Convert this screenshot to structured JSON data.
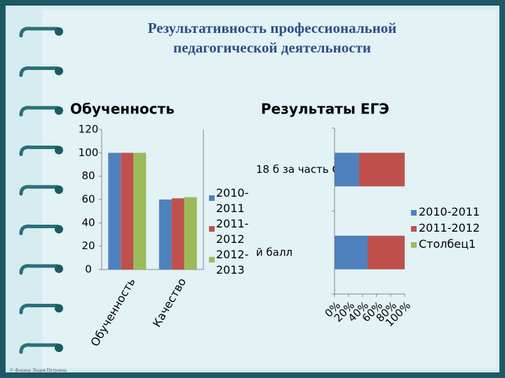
{
  "slide": {
    "title": "Результативность профессиональной педагогической деятельности",
    "footer": "© Фокина Лидия Петровна"
  },
  "chart_data": [
    {
      "type": "bar",
      "title": "Обученность",
      "categories": [
        "Обученность",
        "Качество"
      ],
      "series": [
        {
          "name": "2010-2011",
          "color": "#4f81bd",
          "values": [
            100,
            60
          ]
        },
        {
          "name": "2011-2012",
          "color": "#c0504d",
          "values": [
            100,
            61
          ]
        },
        {
          "name": "2012-2013",
          "color": "#9bbb59",
          "values": [
            100,
            62
          ]
        }
      ],
      "ylim": [
        0,
        120
      ],
      "yticks": [
        0,
        20,
        40,
        60,
        80,
        100,
        120
      ],
      "grid": false
    },
    {
      "type": "stacked-barh",
      "title": "Результаты ЕГЭ",
      "categories": [
        "й балл",
        "18 б за часть С"
      ],
      "series": [
        {
          "name": "2010-2011",
          "color": "#4f81bd",
          "values": [
            47,
            35
          ]
        },
        {
          "name": "2011-2012",
          "color": "#c0504d",
          "values": [
            53,
            65
          ]
        },
        {
          "name": "Столбец1",
          "color": "#9bbb59",
          "values": [
            null,
            null
          ]
        }
      ],
      "xlim": [
        0,
        100
      ],
      "xticks": [
        {
          "value": 0,
          "label": "0%"
        },
        {
          "value": 20,
          "label": "20%"
        },
        {
          "value": 40,
          "label": "40%"
        },
        {
          "value": 60,
          "label": "60%"
        },
        {
          "value": 80,
          "label": "80%"
        },
        {
          "value": 100,
          "label": "100%"
        }
      ],
      "grid": false
    }
  ]
}
